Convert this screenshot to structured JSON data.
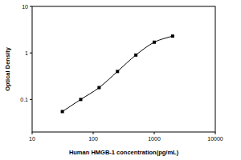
{
  "chart_data": {
    "type": "line",
    "x_label": "Human HMGB-1 concentration(pg/mL)",
    "y_label": "Optical Density",
    "x": [
      31.25,
      62.5,
      125,
      250,
      500,
      1000,
      2000
    ],
    "values": [
      0.055,
      0.1,
      0.18,
      0.4,
      0.9,
      1.7,
      2.3
    ],
    "color": "#000000",
    "marker": "square",
    "log": true,
    "xlim": [
      10,
      10000
    ],
    "xticks": [
      10,
      100,
      1000,
      10000
    ],
    "ylim": [
      0.02,
      10
    ],
    "yticks": [
      0.1,
      1,
      10
    ]
  }
}
